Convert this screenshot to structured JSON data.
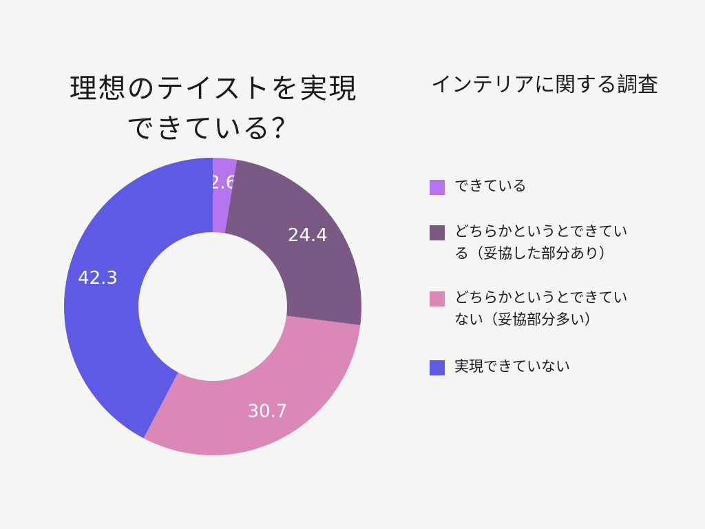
{
  "title": {
    "line1": "理想のテイストを実現",
    "line2": "できている？"
  },
  "subtitle": "インテリアに関する調査",
  "colors": {
    "background": "#f5f5f3",
    "slice_0": "#b675ee",
    "slice_1": "#7a5a85",
    "slice_2": "#db88b6",
    "slice_3": "#5f5ae3",
    "label_text": "#ffffff"
  },
  "chart_data": {
    "type": "pie",
    "donut": true,
    "start": "top",
    "direction": "clockwise",
    "categories": [
      "できている",
      "どちらかというとできている（妥協した部分あり）",
      "どちらかというとできていない（妥協部分多い）",
      "実現できていない"
    ],
    "values": [
      2.6,
      24.4,
      30.7,
      42.3
    ],
    "data_labels": [
      "2.6",
      "24.4",
      "30.7",
      "42.3"
    ],
    "legend_position": "right"
  },
  "legend": {
    "items": [
      {
        "lines": [
          "できている"
        ]
      },
      {
        "lines": [
          "どちらかというとできてい",
          "る（妥協した部分あり）"
        ]
      },
      {
        "lines": [
          "どちらかというとできてい",
          "ない（妥協部分多い）"
        ]
      },
      {
        "lines": [
          "実現できていない"
        ]
      }
    ]
  }
}
